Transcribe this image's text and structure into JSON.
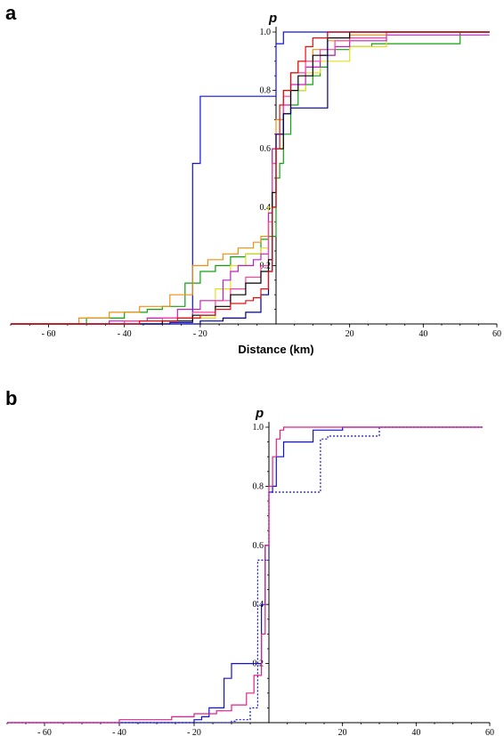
{
  "chart_data": [
    {
      "panel": "a",
      "type": "line",
      "title": "",
      "xlabel": "Distance (km)",
      "ylabel": "p",
      "xlim": [
        -70,
        60
      ],
      "ylim": [
        0,
        1.0
      ],
      "x_ticks": [
        -60,
        -40,
        -20,
        20,
        40,
        60
      ],
      "x_tick_labels": [
        "- 60",
        "- 40",
        "- 20",
        "20",
        "40",
        "60"
      ],
      "y_ticks": [
        0.2,
        0.4,
        0.6,
        0.8,
        1.0
      ],
      "y_tick_labels": [
        "0.2",
        "0.4",
        "0.6",
        "0.8",
        "1.0"
      ],
      "grid": false,
      "step": true,
      "series": [
        {
          "color": "#1010e0",
          "dashed": false,
          "x": [
            -70,
            -28,
            -22,
            -22,
            -20,
            -20,
            -18,
            -18,
            0,
            0,
            2,
            2,
            4,
            4,
            58
          ],
          "y": [
            0,
            0.005,
            0.005,
            0.55,
            0.55,
            0.78,
            0.78,
            0.78,
            0.78,
            0.96,
            0.96,
            1.0,
            1.0,
            1.0,
            1.0
          ]
        },
        {
          "color": "#10a010",
          "dashed": false,
          "x": [
            -70,
            -50,
            -40,
            -34,
            -30,
            -24,
            -20,
            -16,
            -12,
            -8,
            -4,
            -2,
            0,
            1,
            2,
            4,
            6,
            8,
            10,
            12,
            14,
            16,
            20,
            26,
            30,
            50,
            50,
            58
          ],
          "y": [
            0,
            0.02,
            0.04,
            0.05,
            0.06,
            0.14,
            0.18,
            0.2,
            0.23,
            0.24,
            0.29,
            0.3,
            0.5,
            0.55,
            0.65,
            0.75,
            0.8,
            0.82,
            0.85,
            0.88,
            0.92,
            0.94,
            0.95,
            0.96,
            0.96,
            0.96,
            1.0,
            1.0
          ]
        },
        {
          "color": "#f09010",
          "dashed": false,
          "x": [
            -70,
            -52,
            -44,
            -36,
            -28,
            -22,
            -18,
            -14,
            -10,
            -6,
            -4,
            -2,
            -1,
            0,
            2,
            4,
            6,
            10,
            14,
            20,
            30,
            58
          ],
          "y": [
            0,
            0.02,
            0.04,
            0.06,
            0.1,
            0.2,
            0.22,
            0.24,
            0.26,
            0.28,
            0.3,
            0.38,
            0.6,
            0.7,
            0.8,
            0.86,
            0.9,
            0.94,
            0.97,
            0.99,
            1.0,
            1.0
          ]
        },
        {
          "color": "#e0e020",
          "dashed": false,
          "x": [
            -70,
            -40,
            -26,
            -16,
            -12,
            -8,
            -4,
            -2,
            -1,
            0,
            2,
            4,
            8,
            12,
            20,
            30,
            58
          ],
          "y": [
            0,
            0.01,
            0.02,
            0.12,
            0.2,
            0.24,
            0.26,
            0.4,
            0.55,
            0.6,
            0.72,
            0.8,
            0.86,
            0.9,
            0.95,
            1.0,
            1.0
          ]
        },
        {
          "color": "#c020c0",
          "dashed": false,
          "x": [
            -70,
            -44,
            -34,
            -26,
            -20,
            -14,
            -12,
            -10,
            -6,
            -4,
            -2,
            -1,
            0,
            2,
            4,
            8,
            12,
            16,
            20,
            30,
            58
          ],
          "y": [
            0,
            0.01,
            0.02,
            0.05,
            0.08,
            0.15,
            0.18,
            0.2,
            0.22,
            0.24,
            0.38,
            0.6,
            0.65,
            0.75,
            0.82,
            0.88,
            0.92,
            0.95,
            0.97,
            0.99,
            0.99
          ]
        },
        {
          "color": "#ff40a0",
          "dashed": false,
          "x": [
            -70,
            -40,
            -30,
            -22,
            -16,
            -12,
            -8,
            -4,
            -2,
            -1,
            0,
            2,
            4,
            8,
            12,
            16,
            20,
            30,
            58
          ],
          "y": [
            0,
            0.01,
            0.02,
            0.04,
            0.08,
            0.12,
            0.16,
            0.2,
            0.35,
            0.55,
            0.65,
            0.78,
            0.86,
            0.9,
            0.94,
            0.97,
            0.98,
            1.0,
            1.0
          ]
        },
        {
          "color": "#000000",
          "dashed": false,
          "x": [
            -70,
            -30,
            -22,
            -16,
            -12,
            -8,
            -4,
            -2,
            -1,
            0,
            2,
            4,
            6,
            10,
            14,
            20,
            30,
            58
          ],
          "y": [
            0,
            0.01,
            0.03,
            0.06,
            0.1,
            0.14,
            0.18,
            0.22,
            0.45,
            0.6,
            0.72,
            0.8,
            0.85,
            0.92,
            0.98,
            1.0,
            1.0,
            1.0
          ]
        },
        {
          "color": "#000080",
          "dashed": false,
          "x": [
            -70,
            -20,
            -14,
            -8,
            -4,
            -2,
            -1,
            0,
            2,
            4,
            6,
            10,
            14,
            58
          ],
          "y": [
            0,
            0.01,
            0.02,
            0.04,
            0.1,
            0.18,
            0.4,
            0.65,
            0.72,
            0.74,
            0.74,
            0.74,
            1.0,
            1.0
          ]
        },
        {
          "color": "#e01010",
          "dashed": false,
          "x": [
            -70,
            -36,
            -26,
            -20,
            -16,
            -12,
            -8,
            -6,
            -4,
            -2,
            -1,
            0,
            1,
            2,
            4,
            6,
            8,
            10,
            14,
            20,
            58
          ],
          "y": [
            0,
            0.01,
            0.02,
            0.03,
            0.05,
            0.07,
            0.08,
            0.09,
            0.12,
            0.18,
            0.4,
            0.6,
            0.75,
            0.8,
            0.86,
            0.9,
            0.95,
            0.98,
            1.0,
            1.0,
            1.0
          ]
        }
      ]
    },
    {
      "panel": "b",
      "type": "line",
      "title": "",
      "xlabel": "",
      "ylabel": "p",
      "xlim": [
        -70,
        60
      ],
      "ylim": [
        0,
        1.0
      ],
      "x_ticks": [
        -60,
        -40,
        -20,
        20,
        40,
        60
      ],
      "x_tick_labels": [
        "- 60",
        "- 40",
        "- 20",
        "20",
        "40",
        "60"
      ],
      "y_ticks": [
        0.2,
        0.4,
        0.6,
        0.8,
        1.0
      ],
      "y_tick_labels": [
        "0.2",
        "0.4",
        "0.6",
        "0.8",
        "1.0"
      ],
      "grid": false,
      "step": true,
      "series": [
        {
          "color": "#1010e0",
          "dashed": false,
          "x": [
            -70,
            -20,
            -18,
            -16,
            -12,
            -10,
            -4,
            -2,
            -1,
            0,
            1,
            2,
            4,
            6,
            8,
            12,
            20,
            30,
            58
          ],
          "y": [
            0,
            0.01,
            0.02,
            0.05,
            0.15,
            0.2,
            0.2,
            0.4,
            0.6,
            0.78,
            0.8,
            0.9,
            0.95,
            0.95,
            0.95,
            0.99,
            1.0,
            1.0,
            1.0
          ]
        },
        {
          "color": "#1010e0",
          "dashed": true,
          "x": [
            -70,
            -10,
            -9,
            -6,
            -5,
            -4,
            -3,
            -2,
            -1,
            0,
            14,
            14,
            16,
            30,
            58
          ],
          "y": [
            0,
            0.005,
            0.01,
            0.01,
            0.05,
            0.05,
            0.55,
            0.55,
            0.55,
            0.78,
            0.78,
            0.96,
            0.97,
            1.0,
            1.0
          ]
        },
        {
          "color": "#e0208a",
          "dashed": false,
          "x": [
            -70,
            -40,
            -30,
            -26,
            -20,
            -14,
            -10,
            -6,
            -4,
            -2,
            -1,
            0,
            1,
            2,
            3,
            4,
            6,
            10,
            20,
            58
          ],
          "y": [
            0,
            0.01,
            0.01,
            0.02,
            0.03,
            0.04,
            0.06,
            0.1,
            0.16,
            0.3,
            0.6,
            0.8,
            0.9,
            0.96,
            0.99,
            1.0,
            1.0,
            1.0,
            1.0,
            1.0
          ]
        }
      ]
    }
  ]
}
